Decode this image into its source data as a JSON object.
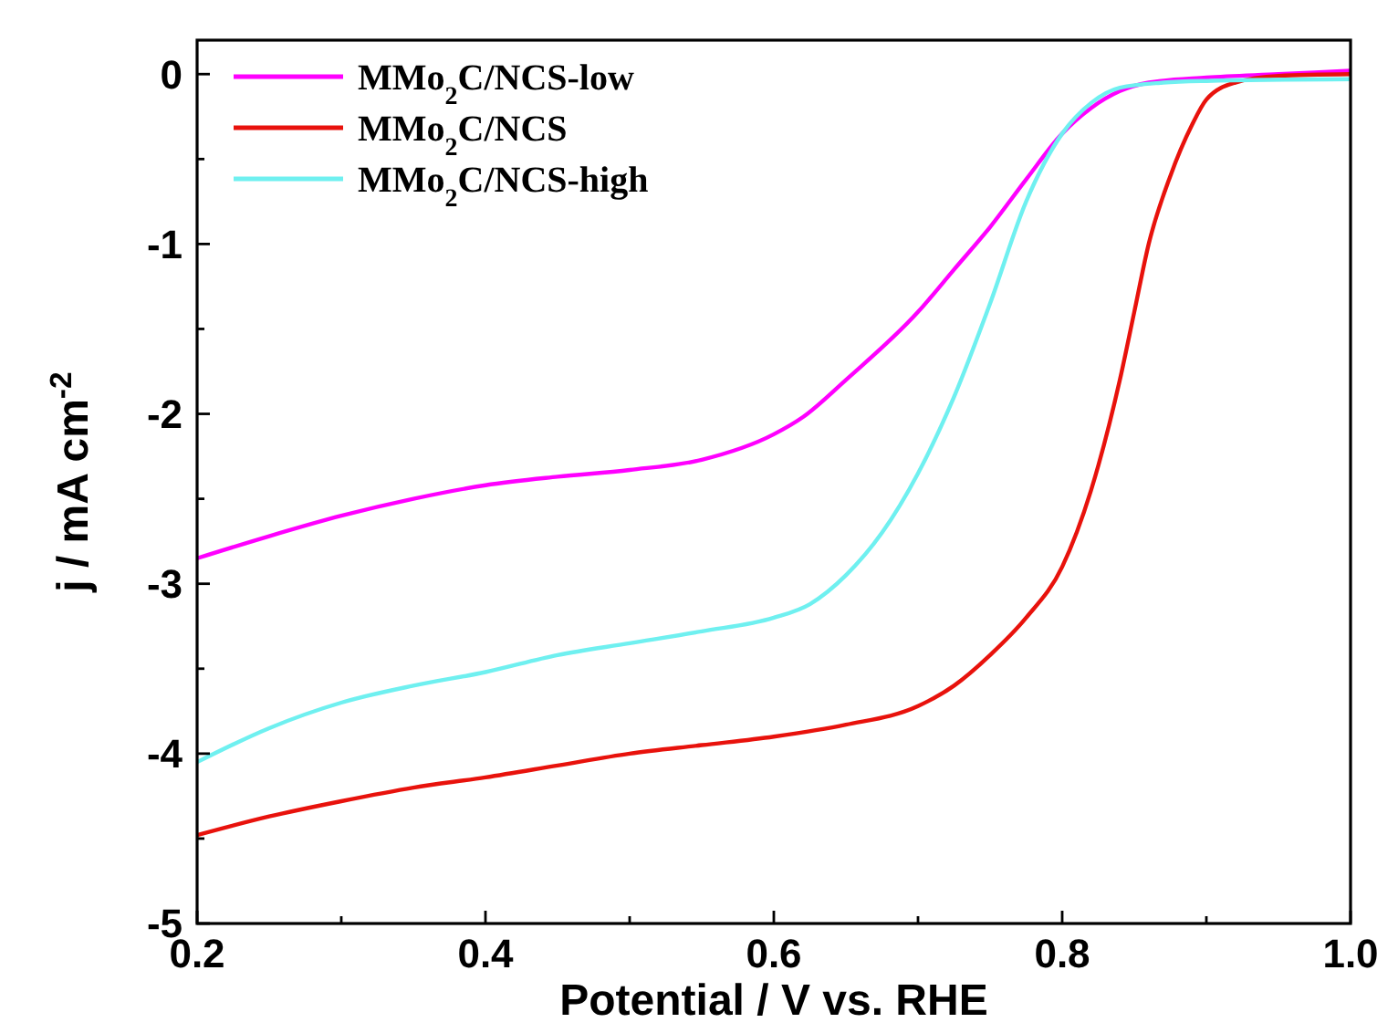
{
  "chart_data": {
    "type": "line",
    "xlabel": "Potential / V vs. RHE",
    "ylabel": "j / mA cm$^{-2}$",
    "xlim": [
      0.2,
      1.0
    ],
    "ylim": [
      -5,
      0.2
    ],
    "xticks": [
      0.2,
      {
        "value": 0.3,
        "label": null
      },
      0.4,
      {
        "value": 0.5,
        "label": null
      },
      0.6,
      {
        "value": 0.7,
        "label": null
      },
      0.8,
      {
        "value": 0.9,
        "label": null
      },
      {
        "value": 1.0,
        "label": "1.0"
      }
    ],
    "yticks": [
      -5,
      {
        "value": -4.5,
        "label": null
      },
      -4,
      {
        "value": -3.5,
        "label": null
      },
      -3,
      {
        "value": -2.5,
        "label": null
      },
      -2,
      {
        "value": -1.5,
        "label": null
      },
      -1,
      {
        "value": -0.5,
        "label": null
      },
      0
    ],
    "grid": false,
    "legend": "top left",
    "line_style": "solid",
    "series": [
      {
        "name": "MMo$_{2}$C/NCS-low",
        "color": "#ff00ff",
        "x": [
          0.2,
          0.25,
          0.3,
          0.35,
          0.4,
          0.45,
          0.5,
          0.55,
          0.6,
          0.62,
          0.65,
          0.7,
          0.725,
          0.75,
          0.775,
          0.8,
          0.82,
          0.84,
          0.86,
          0.9,
          0.95,
          1.0
        ],
        "values": [
          -2.85,
          -2.72,
          -2.6,
          -2.5,
          -2.42,
          -2.37,
          -2.33,
          -2.27,
          -2.12,
          -2.02,
          -1.8,
          -1.4,
          -1.15,
          -0.9,
          -0.62,
          -0.35,
          -0.2,
          -0.1,
          -0.05,
          -0.02,
          0.0,
          0.02
        ]
      },
      {
        "name": "MMo$_{2}$C/NCS",
        "color": "#e8120c",
        "x": [
          0.2,
          0.25,
          0.3,
          0.35,
          0.4,
          0.45,
          0.5,
          0.55,
          0.6,
          0.65,
          0.7,
          0.725,
          0.75,
          0.775,
          0.8,
          0.82,
          0.84,
          0.85,
          0.86,
          0.875,
          0.89,
          0.9,
          0.92,
          0.95,
          1.0
        ],
        "values": [
          -4.48,
          -4.37,
          -4.28,
          -4.2,
          -4.14,
          -4.07,
          -4.0,
          -3.95,
          -3.9,
          -3.83,
          -3.72,
          -3.6,
          -3.42,
          -3.2,
          -2.9,
          -2.45,
          -1.8,
          -1.4,
          -1.0,
          -0.6,
          -0.3,
          -0.15,
          -0.05,
          -0.01,
          0.0
        ]
      },
      {
        "name": "MMo$_{2}$C/NCS-high",
        "color": "#6ff0f0",
        "x": [
          0.2,
          0.25,
          0.3,
          0.35,
          0.4,
          0.45,
          0.5,
          0.55,
          0.6,
          0.625,
          0.65,
          0.675,
          0.7,
          0.725,
          0.75,
          0.775,
          0.8,
          0.82,
          0.84,
          0.87,
          0.9,
          1.0
        ],
        "values": [
          -4.05,
          -3.85,
          -3.7,
          -3.6,
          -3.52,
          -3.42,
          -3.35,
          -3.28,
          -3.2,
          -3.12,
          -2.95,
          -2.7,
          -2.35,
          -1.9,
          -1.35,
          -0.75,
          -0.35,
          -0.17,
          -0.08,
          -0.05,
          -0.04,
          -0.03
        ]
      }
    ]
  }
}
